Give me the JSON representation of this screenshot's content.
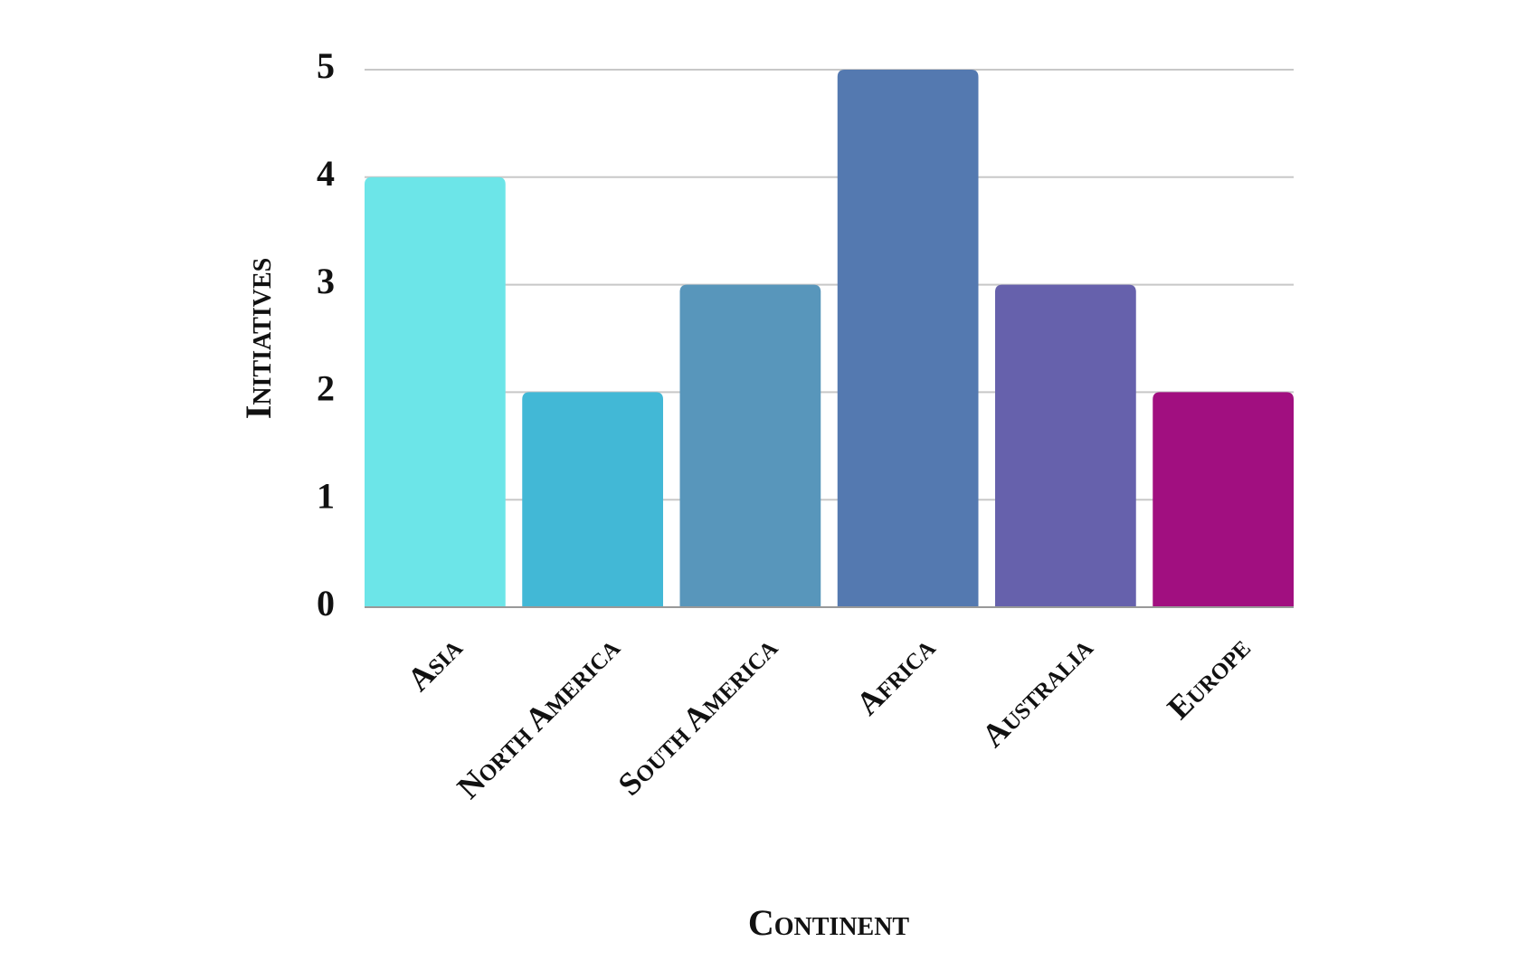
{
  "chart_data": {
    "type": "bar",
    "x_label": "Continent",
    "y_label": "Initiatives",
    "categories": [
      "Asia",
      "North America",
      "South America",
      "Africa",
      "Australia",
      "Europe"
    ],
    "values": [
      4,
      2,
      3,
      5,
      3,
      2
    ],
    "colors": [
      "#6ce5e8",
      "#42b8d6",
      "#5896bb",
      "#5479b0",
      "#6661ac",
      "#a10f80"
    ],
    "ylim": [
      0,
      5
    ],
    "yticks": [
      0,
      1,
      2,
      3,
      4,
      5
    ],
    "grid": true
  }
}
